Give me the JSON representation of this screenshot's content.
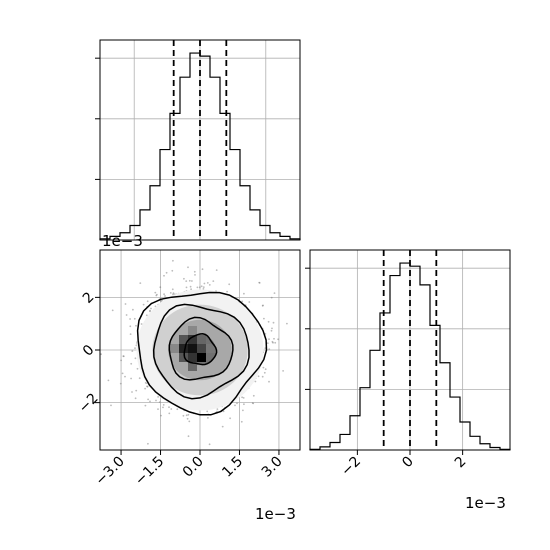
{
  "chart_data": [
    {
      "type": "histogram",
      "xlim": [
        -3.8,
        3.8
      ],
      "grid": true,
      "bin_edges": [
        -3.8,
        -3.42,
        -3.04,
        -2.66,
        -2.28,
        -1.9,
        -1.52,
        -1.14,
        -0.76,
        -0.38,
        0.0,
        0.38,
        0.76,
        1.14,
        1.52,
        1.9,
        2.28,
        2.66,
        3.04,
        3.42,
        3.8
      ],
      "counts": [
        2,
        6,
        12,
        24,
        50,
        90,
        150,
        210,
        270,
        310,
        305,
        270,
        210,
        150,
        90,
        50,
        24,
        12,
        6,
        2
      ],
      "quantiles": [
        -1.0,
        0.0,
        1.0
      ],
      "offset_label": "1e−3"
    },
    {
      "type": "scatter",
      "subtype": "2d-histogram-contour",
      "xlim": [
        -3.8,
        3.8
      ],
      "ylim": [
        -3.8,
        3.8
      ],
      "grid": true,
      "x_ticks": [
        "−3.0",
        "−1.5",
        "0.0",
        "1.5",
        "3.0"
      ],
      "x_tick_values": [
        -3.0,
        -1.5,
        0.0,
        1.5,
        3.0
      ],
      "y_ticks": [
        "2",
        "0",
        "−2"
      ],
      "y_tick_values": [
        2,
        0,
        -2
      ],
      "contour_levels_sigma": [
        0.5,
        1.0,
        1.5,
        2.0
      ],
      "x_offset_label": "1e−3",
      "y_offset_label": "1e−3"
    },
    {
      "type": "histogram",
      "xlim": [
        -3.8,
        3.8
      ],
      "grid": true,
      "bin_edges": [
        -3.8,
        -3.42,
        -3.04,
        -2.66,
        -2.28,
        -1.9,
        -1.52,
        -1.14,
        -0.76,
        -0.38,
        0.0,
        0.38,
        0.76,
        1.14,
        1.52,
        1.9,
        2.28,
        2.66,
        3.04,
        3.42,
        3.8
      ],
      "counts": [
        1,
        5,
        12,
        25,
        55,
        100,
        160,
        220,
        280,
        300,
        295,
        265,
        200,
        140,
        85,
        45,
        22,
        10,
        4,
        1
      ],
      "quantiles": [
        -1.0,
        0.0,
        1.0
      ],
      "x_ticks": [
        "−2",
        "0",
        "2"
      ],
      "x_tick_values": [
        -2,
        0,
        2
      ],
      "offset_label": "1e−3"
    }
  ],
  "colors": {
    "ink": "#000000",
    "grid": "#b0b0b0",
    "points": "#7a7a7a"
  }
}
